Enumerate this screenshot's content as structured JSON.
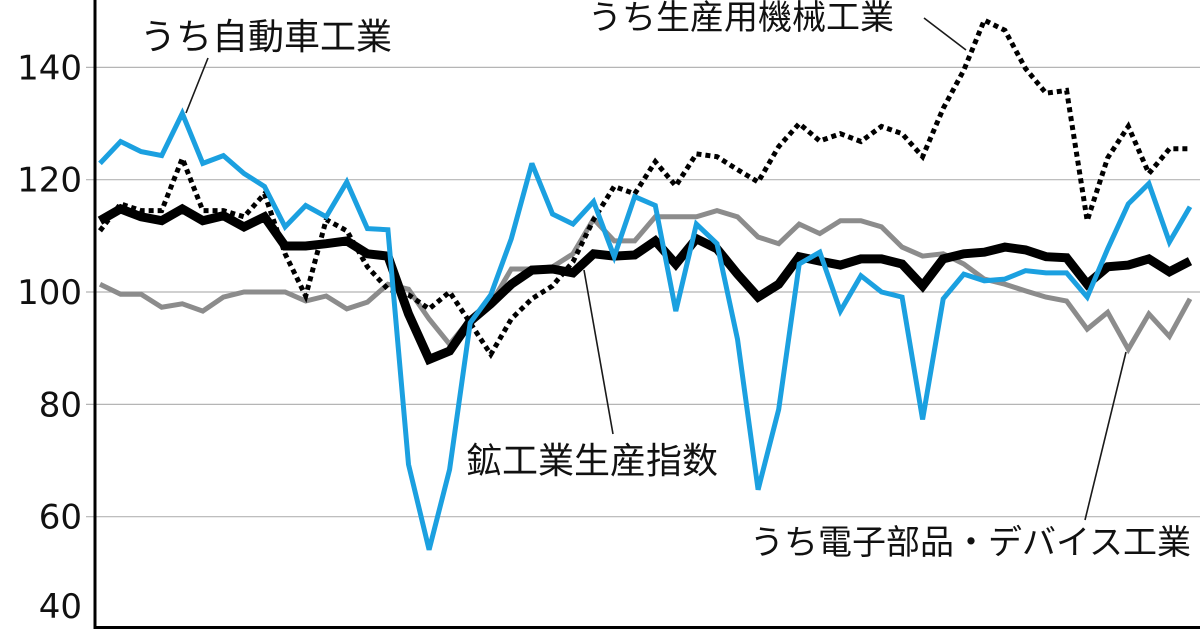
{
  "chart_data": {
    "type": "line",
    "ylim": [
      40,
      152
    ],
    "yticks": [
      140,
      120,
      100,
      80,
      60,
      40
    ],
    "grid": true,
    "series": [
      {
        "name": "鉱工業生産指数",
        "color": "#000000",
        "line_style": "solid",
        "values": [
          112.7,
          114.8,
          113.4,
          112.7,
          114.8,
          112.7,
          113.6,
          111.6,
          113.4,
          108.2,
          108.2,
          108.6,
          109.1,
          106.8,
          106.4,
          96.1,
          88.0,
          89.5,
          94.8,
          97.9,
          101.4,
          103.9,
          104.1,
          103.4,
          106.8,
          106.4,
          106.6,
          109.1,
          105.0,
          109.5,
          107.7,
          103.2,
          99.1,
          101.4,
          106.3,
          105.5,
          104.8,
          105.9,
          105.9,
          105.0,
          101.1,
          105.9,
          106.8,
          107.1,
          108.0,
          107.5,
          106.3,
          106.1,
          101.4,
          104.5,
          104.8,
          105.9,
          103.6,
          105.5
        ]
      },
      {
        "name": "うち自動車工業",
        "color": "#1ba0e0",
        "line_style": "solid",
        "values": [
          122.9,
          126.8,
          125.0,
          124.3,
          131.8,
          122.9,
          124.3,
          121.1,
          118.8,
          111.6,
          115.4,
          113.4,
          119.6,
          111.3,
          111.1,
          69.3,
          54.1,
          68.4,
          94.5,
          99.5,
          109.5,
          122.9,
          113.9,
          112.1,
          116.1,
          106.3,
          117.0,
          115.4,
          96.6,
          112.1,
          108.6,
          91.6,
          64.8,
          79.1,
          105.0,
          107.1,
          96.6,
          102.9,
          100.0,
          99.1,
          77.3,
          98.8,
          103.2,
          102.0,
          102.3,
          103.8,
          103.4,
          103.4,
          99.1,
          107.7,
          115.7,
          119.3,
          108.9,
          115.2
        ]
      },
      {
        "name": "うち生産用機械工業",
        "color": "#000000",
        "line_style": "dotted",
        "values": [
          110.9,
          115.7,
          114.5,
          114.5,
          123.8,
          114.5,
          114.5,
          113.4,
          117.5,
          106.8,
          99.3,
          112.9,
          110.9,
          104.5,
          100.5,
          99.5,
          97.0,
          100.0,
          94.5,
          88.9,
          95.2,
          98.8,
          101.1,
          105.4,
          112.9,
          118.8,
          117.5,
          123.2,
          118.9,
          124.6,
          124.1,
          121.8,
          119.6,
          125.9,
          130.0,
          126.9,
          128.2,
          126.8,
          129.5,
          128.2,
          124.1,
          132.7,
          139.5,
          148.4,
          146.6,
          139.8,
          135.4,
          135.9,
          112.7,
          123.9,
          129.5,
          121.1,
          125.5,
          125.5
        ]
      },
      {
        "name": "うち電子部品・デバイス工業",
        "color": "#8c8c8c",
        "line_style": "solid",
        "values": [
          101.4,
          99.6,
          99.6,
          97.3,
          97.9,
          96.6,
          99.1,
          100.0,
          100.0,
          100.0,
          98.4,
          99.3,
          97.0,
          98.2,
          101.4,
          100.5,
          95.2,
          90.7,
          95.2,
          97.9,
          104.1,
          104.1,
          104.5,
          106.8,
          113.0,
          109.1,
          109.1,
          113.4,
          113.4,
          113.4,
          114.5,
          113.4,
          109.8,
          108.6,
          112.1,
          110.4,
          112.7,
          112.7,
          111.6,
          108.0,
          106.4,
          106.8,
          105.0,
          102.3,
          101.4,
          100.2,
          99.1,
          98.4,
          93.4,
          96.4,
          89.8,
          96.1,
          92.1,
          98.8
        ]
      }
    ]
  }
}
